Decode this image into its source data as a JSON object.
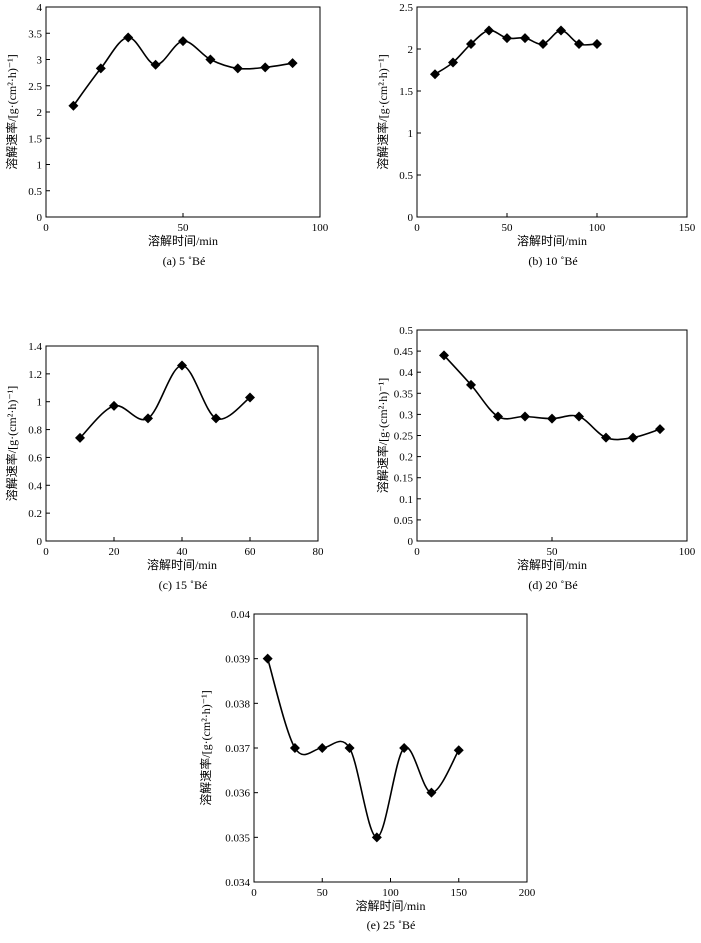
{
  "chart_data": [
    {
      "type": "line",
      "caption": "(a) 5 ˚Bé",
      "xlabel": "溶解时间/min",
      "ylabel": "溶解速率/[g·(cm²·h)⁻¹]",
      "xlim": [
        0,
        100
      ],
      "ylim": [
        0,
        4
      ],
      "xticks": [
        0,
        50,
        100
      ],
      "yticks": [
        0,
        0.5,
        1,
        1.5,
        2,
        2.5,
        3,
        3.5,
        4
      ],
      "x": [
        10,
        20,
        30,
        40,
        50,
        60,
        70,
        80,
        90
      ],
      "y": [
        2.12,
        2.83,
        3.42,
        2.9,
        3.35,
        3.0,
        2.83,
        2.85,
        2.93
      ]
    },
    {
      "type": "line",
      "caption": "(b) 10 ˚Bé",
      "xlabel": "溶解时间/min",
      "ylabel": "溶解速率/[g·(cm²·h)⁻¹]",
      "xlim": [
        0,
        150
      ],
      "ylim": [
        0,
        2.5
      ],
      "xticks": [
        0,
        50,
        100,
        150
      ],
      "yticks": [
        0,
        0.5,
        1,
        1.5,
        2,
        2.5
      ],
      "x": [
        10,
        20,
        30,
        40,
        50,
        60,
        70,
        80,
        90,
        100
      ],
      "y": [
        1.7,
        1.84,
        2.06,
        2.22,
        2.13,
        2.13,
        2.06,
        2.22,
        2.06,
        2.06
      ]
    },
    {
      "type": "line",
      "caption": "(c) 15 ˚Bé",
      "xlabel": "溶解时间/min",
      "ylabel": "溶解速率/[g·(cm²·h)⁻¹]",
      "xlim": [
        0,
        80
      ],
      "ylim": [
        0,
        1.4
      ],
      "xticks": [
        0,
        20,
        40,
        60,
        80
      ],
      "yticks": [
        0,
        0.2,
        0.4,
        0.6,
        0.8,
        1,
        1.2,
        1.4
      ],
      "x": [
        10,
        20,
        30,
        40,
        50,
        60
      ],
      "y": [
        0.74,
        0.97,
        0.88,
        1.26,
        0.88,
        1.03
      ]
    },
    {
      "type": "line",
      "caption": "(d) 20 ˚Bé",
      "xlabel": "溶解时间/min",
      "ylabel": "溶解速率/[g·(cm²·h)⁻¹]",
      "xlim": [
        0,
        100
      ],
      "ylim": [
        0,
        0.5
      ],
      "xticks": [
        0,
        50,
        100
      ],
      "yticks": [
        0,
        0.05,
        0.1,
        0.15,
        0.2,
        0.25,
        0.3,
        0.35,
        0.4,
        0.45,
        0.5
      ],
      "x": [
        10,
        20,
        30,
        40,
        50,
        60,
        70,
        80,
        90
      ],
      "y": [
        0.44,
        0.37,
        0.295,
        0.295,
        0.29,
        0.295,
        0.245,
        0.245,
        0.265
      ]
    },
    {
      "type": "line",
      "caption": "(e) 25 ˚Bé",
      "xlabel": "溶解时间/min",
      "ylabel": "溶解速率/[g·(cm²·h)⁻¹]",
      "xlim": [
        0,
        200
      ],
      "ylim": [
        0.034,
        0.04
      ],
      "xticks": [
        0,
        50,
        100,
        150,
        200
      ],
      "yticks": [
        0.034,
        0.035,
        0.036,
        0.037,
        0.038,
        0.039,
        0.04
      ],
      "x": [
        10,
        30,
        50,
        70,
        90,
        110,
        130,
        150
      ],
      "y": [
        0.039,
        0.037,
        0.037,
        0.037,
        0.035,
        0.037,
        0.036,
        0.03695
      ]
    }
  ]
}
